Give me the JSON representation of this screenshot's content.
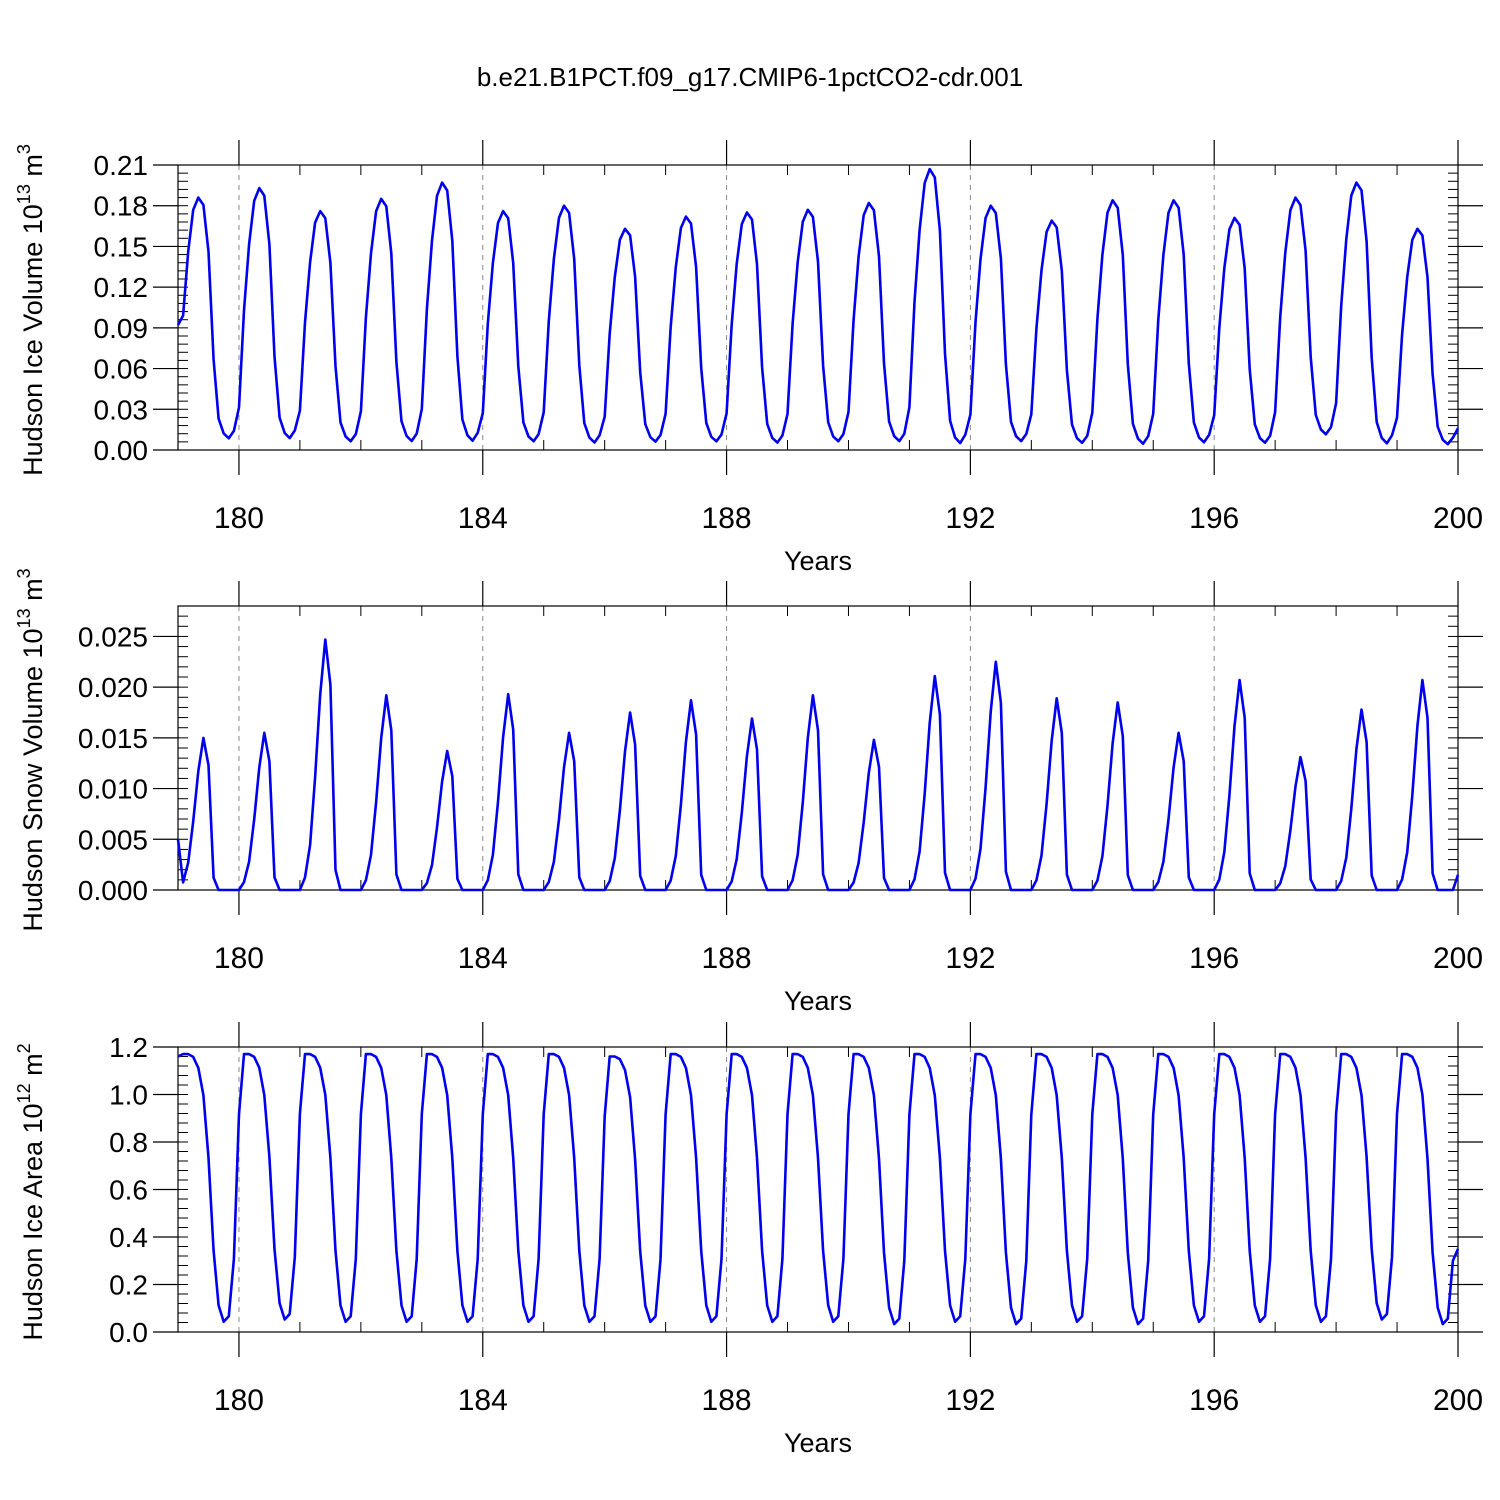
{
  "title": "b.e21.B1PCT.f09_g17.CMIP6-1pctCO2-cdr.001",
  "colors": {
    "line": "#0000ee",
    "axis": "#000000",
    "grid": "#888888",
    "background": "#ffffff"
  },
  "chart_data": [
    {
      "type": "line",
      "ylabel_main": "Hudson Ice Volume 10",
      "ylabel_exp": "13",
      "ylabel_unit": " m",
      "ylabel_unit_exp": "3",
      "xlabel": "Years",
      "xlim": [
        179,
        200
      ],
      "ylim": [
        0,
        0.21
      ],
      "yticks": [
        "0.00",
        "0.03",
        "0.06",
        "0.09",
        "0.12",
        "0.15",
        "0.18",
        "0.21"
      ],
      "xticks": [
        "180",
        "184",
        "188",
        "192",
        "196",
        "200"
      ],
      "minima": [
        0.005,
        0.005,
        0.003,
        0.003,
        0.003,
        0.003,
        0.002,
        0.003,
        0.003,
        0.002,
        0.003,
        0.003,
        0.001,
        0.003,
        0.002,
        0.001,
        0.002,
        0.002,
        0.008,
        0.001
      ],
      "peak_year": [
        179.08,
        180.42,
        181.33,
        182.33,
        183.33,
        184.33,
        185.33,
        186.42,
        187.42,
        188.42,
        189.42,
        190.33,
        191.42,
        192.42,
        193.42,
        194.42,
        195.42,
        196.42,
        197.42,
        198.42,
        199.33
      ],
      "peak": [
        0.186,
        0.193,
        0.176,
        0.185,
        0.197,
        0.176,
        0.18,
        0.163,
        0.172,
        0.175,
        0.177,
        0.182,
        0.207,
        0.18,
        0.169,
        0.184,
        0.184,
        0.171,
        0.186,
        0.197,
        0.163
      ],
      "start_value": 0.092,
      "end_value": 0.016,
      "series": [
        {
          "name": "Hudson Ice Volume",
          "color": "#0000ee"
        }
      ]
    },
    {
      "type": "line",
      "ylabel_main": "Hudson Snow Volume 10",
      "ylabel_exp": "13",
      "ylabel_unit": " m",
      "ylabel_unit_exp": "3",
      "xlabel": "Years",
      "xlim": [
        179,
        200
      ],
      "ylim": [
        0,
        0.028
      ],
      "yticks": [
        "0.000",
        "0.005",
        "0.010",
        "0.015",
        "0.020",
        "0.025"
      ],
      "xticks": [
        "180",
        "184",
        "188",
        "192",
        "196",
        "200"
      ],
      "minima": [
        0.0,
        0.0,
        0.0,
        0.0,
        0.0,
        0.0,
        0.0,
        0.0,
        0.0,
        0.0,
        0.0,
        0.0,
        0.0,
        0.0,
        0.0,
        0.0,
        0.0,
        0.0,
        0.0,
        0.0
      ],
      "peak_year": [
        179.25,
        180.42,
        181.33,
        182.25,
        183.33,
        184.33,
        185.33,
        186.33,
        187.42,
        188.33,
        189.42,
        190.42,
        191.33,
        192.42,
        193.33,
        194.42,
        195.42,
        196.42,
        197.33,
        198.33,
        199.33
      ],
      "peak": [
        0.015,
        0.0155,
        0.0247,
        0.0192,
        0.0137,
        0.0193,
        0.0155,
        0.0175,
        0.0187,
        0.0169,
        0.0192,
        0.0148,
        0.0211,
        0.0225,
        0.0189,
        0.0185,
        0.0155,
        0.0207,
        0.0131,
        0.0178,
        0.0207
      ],
      "start_value": 0.005,
      "end_value": 0.0015,
      "series": [
        {
          "name": "Hudson Snow Volume",
          "color": "#0000ee"
        }
      ]
    },
    {
      "type": "line",
      "ylabel_main": "Hudson Ice Area 10",
      "ylabel_exp": "12",
      "ylabel_unit": " m",
      "ylabel_unit_exp": "2",
      "xlabel": "Years",
      "xlim": [
        179,
        200
      ],
      "ylim": [
        0,
        1.2
      ],
      "yticks": [
        "0.0",
        "0.2",
        "0.4",
        "0.6",
        "0.8",
        "1.0",
        "1.2"
      ],
      "xticks": [
        "180",
        "184",
        "188",
        "192",
        "196",
        "200"
      ],
      "minima": [
        0.02,
        0.03,
        0.02,
        0.02,
        0.02,
        0.02,
        0.02,
        0.02,
        0.02,
        0.02,
        0.02,
        0.01,
        0.02,
        0.01,
        0.02,
        0.01,
        0.02,
        0.02,
        0.02,
        0.03,
        0.01
      ],
      "peak_year": [
        179.08,
        180.25,
        181.17,
        182.17,
        183.17,
        184.17,
        185.17,
        186.17,
        187.17,
        188.17,
        189.17,
        190.17,
        191.17,
        192.17,
        193.17,
        194.17,
        195.17,
        196.17,
        197.17,
        198.17,
        199.17
      ],
      "peak": [
        1.17,
        1.17,
        1.17,
        1.17,
        1.17,
        1.17,
        1.17,
        1.16,
        1.17,
        1.17,
        1.17,
        1.17,
        1.17,
        1.17,
        1.17,
        1.17,
        1.17,
        1.17,
        1.17,
        1.17,
        1.17
      ],
      "start_value": 1.16,
      "end_value": 0.35,
      "series": [
        {
          "name": "Hudson Ice Area",
          "color": "#0000ee"
        }
      ]
    }
  ]
}
